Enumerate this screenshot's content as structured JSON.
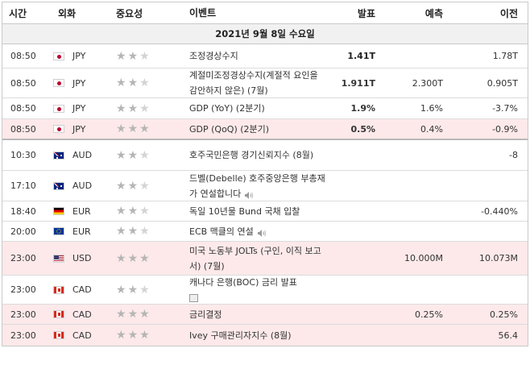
{
  "header": {
    "time": "시간",
    "currency": "외화",
    "importance": "중요성",
    "event": "이벤트",
    "actual": "발표",
    "forecast": "예측",
    "previous": "이전"
  },
  "date_label": "2021년 9월 8일 수요일",
  "colors": {
    "highlight": "#fde9ea",
    "positive": "#1a8fc7",
    "negative": "#c8102e"
  },
  "rows": [
    {
      "time": "08:50",
      "flag": "japan-flag-icon",
      "currency": "JPY",
      "stars": 2,
      "event": "조정경상수지",
      "actual": "1.41T",
      "actual_tone": "neutral",
      "forecast": "",
      "previous": "1.78T",
      "highlight": false
    },
    {
      "time": "08:50",
      "flag": "japan-flag-icon",
      "currency": "JPY",
      "stars": 2,
      "event": "계절미조정경상수지(계절적 요인을 감안하지 않은) (7월)",
      "actual": "1.911T",
      "actual_tone": "positive",
      "forecast": "2.300T",
      "previous": "0.905T",
      "highlight": false
    },
    {
      "time": "08:50",
      "flag": "japan-flag-icon",
      "currency": "JPY",
      "stars": 2,
      "event": "GDP (YoY) (2분기)",
      "actual": "1.9%",
      "actual_tone": "negative",
      "forecast": "1.6%",
      "previous": "-3.7%",
      "highlight": false
    },
    {
      "time": "08:50",
      "flag": "japan-flag-icon",
      "currency": "JPY",
      "stars": 3,
      "event": "GDP (QoQ) (2분기)",
      "actual": "0.5%",
      "actual_tone": "negative",
      "forecast": "0.4%",
      "previous": "-0.9%",
      "highlight": true
    },
    {
      "time": "10:30",
      "flag": "australia-flag-icon",
      "currency": "AUD",
      "stars": 2,
      "event": "호주국민은행 경기신뢰지수 (8월)",
      "actual": "",
      "actual_tone": "neutral",
      "forecast": "",
      "previous": "-8",
      "highlight": false
    },
    {
      "time": "17:10",
      "flag": "australia-flag-icon",
      "currency": "AUD",
      "stars": 2,
      "event": "드벨(Debelle) 호주중앙은행 부총재가 연설합니다",
      "speaker": true,
      "actual": "",
      "actual_tone": "neutral",
      "forecast": "",
      "previous": "",
      "highlight": false
    },
    {
      "time": "18:40",
      "flag": "germany-flag-icon",
      "currency": "EUR",
      "stars": 2,
      "event": "독일 10년물 Bund 국채 입찰",
      "actual": "",
      "actual_tone": "neutral",
      "forecast": "",
      "previous": "-0.440%",
      "highlight": false
    },
    {
      "time": "20:00",
      "flag": "eu-flag-icon",
      "currency": "EUR",
      "stars": 2,
      "event": "ECB 맥클의 연설",
      "speaker": true,
      "actual": "",
      "actual_tone": "neutral",
      "forecast": "",
      "previous": "",
      "highlight": false
    },
    {
      "time": "23:00",
      "flag": "usa-flag-icon",
      "currency": "USD",
      "stars": 3,
      "event": "미국 노동부 JOLTs (구인, 이직 보고서) (7월)",
      "actual": "",
      "actual_tone": "neutral",
      "forecast": "10.000M",
      "previous": "10.073M",
      "highlight": true
    },
    {
      "time": "23:00",
      "flag": "canada-flag-icon",
      "currency": "CAD",
      "stars": 2,
      "event": "캐나다 은행(BOC) 금리 발표",
      "book": true,
      "actual": "",
      "actual_tone": "neutral",
      "forecast": "",
      "previous": "",
      "highlight": false
    },
    {
      "time": "23:00",
      "flag": "canada-flag-icon",
      "currency": "CAD",
      "stars": 3,
      "event": "금리결정",
      "actual": "",
      "actual_tone": "neutral",
      "forecast": "0.25%",
      "previous": "0.25%",
      "highlight": true
    },
    {
      "time": "23:00",
      "flag": "canada-flag-icon",
      "currency": "CAD",
      "stars": 3,
      "event": "Ivey 구매관리자지수 (8월)",
      "actual": "",
      "actual_tone": "neutral",
      "forecast": "",
      "previous": "56.4",
      "highlight": true
    }
  ]
}
